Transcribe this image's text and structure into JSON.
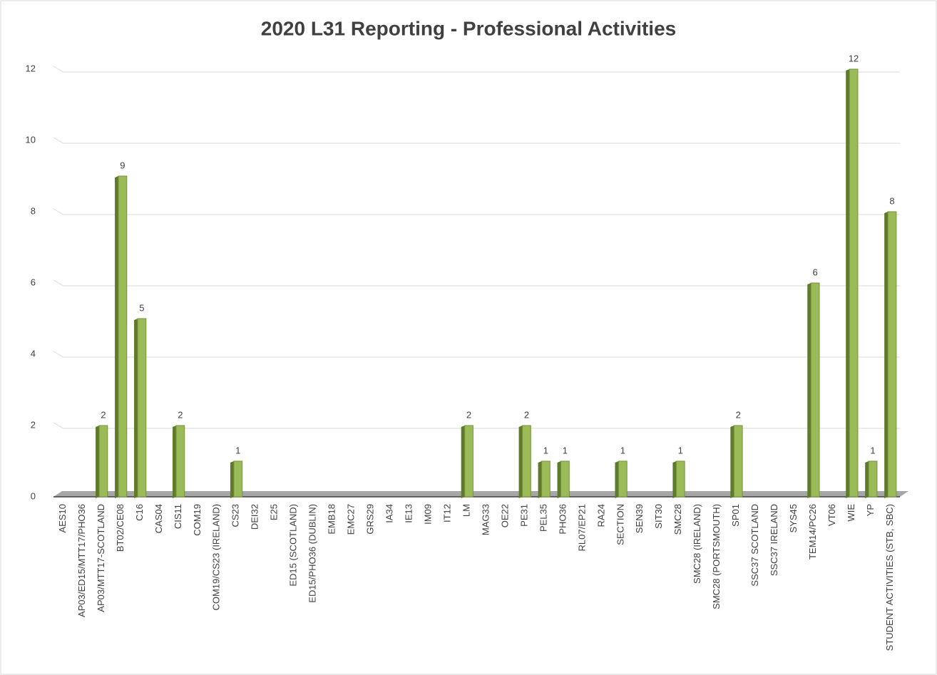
{
  "chart_data": {
    "type": "bar",
    "title": "2020 L31 Reporting - Professional Activities",
    "categories": [
      "AES10",
      "AP03/ED15/MTT17/PHO36",
      "AP03/MTT17-SCOTLAND",
      "BT02/CE08",
      "C16",
      "CAS04",
      "CIS11",
      "COM19",
      "COM19/CS23 (IRELAND)",
      "CS23",
      "DEI32",
      "E25",
      "ED15 (SCOTLAND)",
      "ED15/PHO36 (DUBLIN)",
      "EMB18",
      "EMC27",
      "GRS29",
      "IA34",
      "IE13",
      "IM09",
      "IT12",
      "LM",
      "MAG33",
      "OE22",
      "PE31",
      "PEL35",
      "PHO36",
      "RL07/EP21",
      "RA24",
      "SECTION",
      "SEN39",
      "SIT30",
      "SMC28",
      "SMC28 (IRELAND)",
      "SMC28 (PORTSMOUTH)",
      "SP01",
      "SSC37 SCOTLAND",
      "SSC37 IRELAND",
      "SYS45",
      "TEM14/PC26",
      "VT06",
      "WIE",
      "YP",
      "STUDENT ACTIVITIES (STB, SBC)"
    ],
    "values": [
      0,
      0,
      2,
      9,
      5,
      0,
      2,
      0,
      0,
      1,
      0,
      0,
      0,
      0,
      0,
      0,
      0,
      0,
      0,
      0,
      0,
      2,
      0,
      0,
      2,
      1,
      1,
      0,
      0,
      1,
      0,
      0,
      1,
      0,
      0,
      2,
      0,
      0,
      0,
      6,
      0,
      12,
      1,
      8
    ],
    "color": "#9bbb59",
    "ylim": [
      0,
      12
    ],
    "yticks": [
      0,
      2,
      4,
      6,
      8,
      10,
      12
    ],
    "grid": true
  }
}
